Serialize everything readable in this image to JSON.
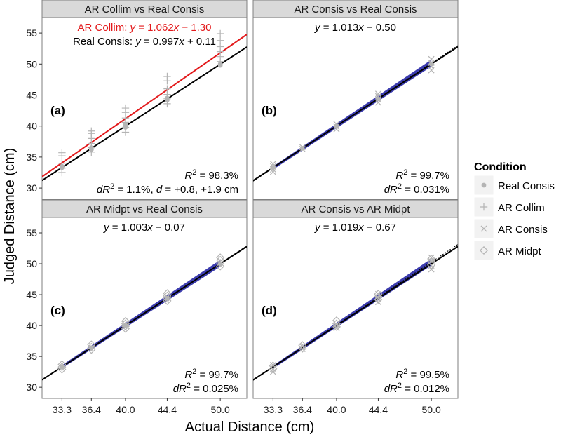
{
  "chart_data": {
    "type": "scatter",
    "xlabel": "Actual Distance (cm)",
    "ylabel": "Judged Distance (cm)",
    "x_ticks": [
      33.3,
      36.4,
      40.0,
      44.4,
      50.0
    ],
    "x_tick_labels": [
      "33.3",
      "36.4",
      "40.0",
      "44.4",
      "50.0"
    ],
    "y_ticks": [
      30,
      35,
      40,
      45,
      50,
      55
    ],
    "y_tick_labels": [
      "30",
      "35",
      "40",
      "45",
      "50",
      "55"
    ],
    "xlim": [
      31.2,
      52.8
    ],
    "ylim": [
      28.2,
      57.5
    ],
    "legend": {
      "title": "Condition",
      "entries": [
        {
          "name": "Real Consis",
          "marker": "dot"
        },
        {
          "name": "AR Collim",
          "marker": "plus"
        },
        {
          "name": "AR Consis",
          "marker": "cross"
        },
        {
          "name": "AR Midpt",
          "marker": "diamond"
        }
      ]
    },
    "colors": {
      "points": "#b4b4b4",
      "red_line": "#e31a1c",
      "blue_band": "#1a1aa0",
      "black_line": "#000000",
      "strip_bg": "#d9d9d9",
      "panel_border": "#7f7f7f"
    },
    "panels": [
      {
        "title": "AR Collim vs Real Consis",
        "letter": "(a)",
        "eq_lines": [
          {
            "prefix": "AR Collim: ",
            "y": "y",
            "mid": " = 1.062",
            "x": "x",
            "suffix": " − 1.30",
            "color": "red"
          },
          {
            "prefix": "Real Consis: ",
            "y": "y",
            "mid": " = 0.997",
            "x": "x",
            "suffix": " + 0.11",
            "color": "black"
          }
        ],
        "r2_label": "R",
        "r2_sup": "2",
        "r2_value": " = 98.3%",
        "dr2_label": "dR",
        "dr2_sup": "2",
        "dr2_value": " = 1.1%, ",
        "d_label": "d",
        "d_value": " = +0.8, +1.9 cm",
        "fit_lines": [
          {
            "slope": 1.062,
            "intercept": -1.3,
            "color": "red"
          },
          {
            "slope": 0.997,
            "intercept": 0.11,
            "color": "black"
          }
        ],
        "series": [
          {
            "name": "Real Consis",
            "marker": "dot",
            "points": [
              [
                33.3,
                33.3
              ],
              [
                33.3,
                33.5
              ],
              [
                36.4,
                36.5
              ],
              [
                36.4,
                36.2
              ],
              [
                40.0,
                39.8
              ],
              [
                40.0,
                40.2
              ],
              [
                44.4,
                44.5
              ],
              [
                44.4,
                44.2
              ],
              [
                50.0,
                50.0
              ],
              [
                50.0,
                49.8
              ]
            ]
          },
          {
            "name": "AR Collim",
            "marker": "plus",
            "points": [
              [
                33.3,
                32.5
              ],
              [
                33.3,
                33.2
              ],
              [
                33.3,
                34.0
              ],
              [
                33.3,
                35.2
              ],
              [
                33.3,
                35.7
              ],
              [
                36.4,
                35.8
              ],
              [
                36.4,
                36.5
              ],
              [
                36.4,
                37.2
              ],
              [
                36.4,
                38.0
              ],
              [
                36.4,
                38.8
              ],
              [
                36.4,
                39.2
              ],
              [
                40.0,
                39.0
              ],
              [
                40.0,
                39.8
              ],
              [
                40.0,
                40.6
              ],
              [
                40.0,
                41.3
              ],
              [
                40.0,
                42.2
              ],
              [
                40.0,
                42.9
              ],
              [
                44.4,
                43.6
              ],
              [
                44.4,
                44.4
              ],
              [
                44.4,
                45.1
              ],
              [
                44.4,
                46.0
              ],
              [
                44.4,
                47.3
              ],
              [
                44.4,
                48.0
              ],
              [
                50.0,
                50.4
              ],
              [
                50.0,
                51.2
              ],
              [
                50.0,
                52.0
              ],
              [
                50.0,
                52.8
              ],
              [
                50.0,
                53.8
              ],
              [
                50.0,
                54.9
              ]
            ]
          }
        ]
      },
      {
        "title": "AR Consis vs Real Consis",
        "letter": "(b)",
        "eq_lines": [
          {
            "prefix": "",
            "y": "y",
            "mid": " = 1.013",
            "x": "x",
            "suffix": " − 0.50",
            "color": "black"
          }
        ],
        "r2_label": "R",
        "r2_sup": "2",
        "r2_value": " = 99.7%",
        "dr2_label": "dR",
        "dr2_sup": "2",
        "dr2_value": " = 0.031%",
        "d_label": "",
        "d_value": "",
        "fit_lines": [
          {
            "slope": 1.013,
            "intercept": -0.5,
            "color": "blue"
          },
          {
            "slope": 1.0,
            "intercept": 0.0,
            "color": "black"
          }
        ],
        "series": [
          {
            "name": "Real Consis",
            "marker": "dot",
            "points": [
              [
                33.3,
                33.3
              ],
              [
                36.4,
                36.4
              ],
              [
                40.0,
                40.0
              ],
              [
                44.4,
                44.4
              ],
              [
                50.0,
                50.0
              ]
            ]
          },
          {
            "name": "AR Consis",
            "marker": "cross",
            "points": [
              [
                33.3,
                32.6
              ],
              [
                33.3,
                33.0
              ],
              [
                33.3,
                33.5
              ],
              [
                33.3,
                33.9
              ],
              [
                36.4,
                36.3
              ],
              [
                36.4,
                36.6
              ],
              [
                40.0,
                39.5
              ],
              [
                40.0,
                39.9
              ],
              [
                40.0,
                40.3
              ],
              [
                44.4,
                43.8
              ],
              [
                44.4,
                44.3
              ],
              [
                44.4,
                44.8
              ],
              [
                44.4,
                45.2
              ],
              [
                50.0,
                49.0
              ],
              [
                50.0,
                49.6
              ],
              [
                50.0,
                50.2
              ],
              [
                50.0,
                50.8
              ]
            ]
          }
        ]
      },
      {
        "title": "AR Midpt vs Real Consis",
        "letter": "(c)",
        "eq_lines": [
          {
            "prefix": "",
            "y": "y",
            "mid": " = 1.003",
            "x": "x",
            "suffix": " − 0.07",
            "color": "black"
          }
        ],
        "r2_label": "R",
        "r2_sup": "2",
        "r2_value": " = 99.7%",
        "dr2_label": "dR",
        "dr2_sup": "2",
        "dr2_value": " = 0.025%",
        "d_label": "",
        "d_value": "",
        "fit_lines": [
          {
            "slope": 1.003,
            "intercept": -0.07,
            "color": "blue"
          },
          {
            "slope": 1.0,
            "intercept": 0.0,
            "color": "black"
          }
        ],
        "series": [
          {
            "name": "Real Consis",
            "marker": "dot",
            "points": [
              [
                33.3,
                33.3
              ],
              [
                36.4,
                36.4
              ],
              [
                40.0,
                40.0
              ],
              [
                44.4,
                44.4
              ],
              [
                50.0,
                50.0
              ]
            ]
          },
          {
            "name": "AR Midpt",
            "marker": "diamond",
            "points": [
              [
                33.3,
                32.9
              ],
              [
                33.3,
                33.3
              ],
              [
                33.3,
                33.7
              ],
              [
                36.4,
                36.1
              ],
              [
                36.4,
                36.5
              ],
              [
                36.4,
                36.9
              ],
              [
                40.0,
                39.5
              ],
              [
                40.0,
                39.9
              ],
              [
                40.0,
                40.3
              ],
              [
                40.0,
                40.7
              ],
              [
                44.4,
                44.0
              ],
              [
                44.4,
                44.4
              ],
              [
                44.4,
                44.8
              ],
              [
                44.4,
                45.2
              ],
              [
                50.0,
                49.6
              ],
              [
                50.0,
                50.1
              ],
              [
                50.0,
                50.6
              ],
              [
                50.0,
                51.0
              ]
            ]
          }
        ]
      },
      {
        "title": "AR Consis vs AR Midpt",
        "letter": "(d)",
        "eq_lines": [
          {
            "prefix": "",
            "y": "y",
            "mid": " = 1.019",
            "x": "x",
            "suffix": " − 0.67",
            "color": "black"
          }
        ],
        "r2_label": "R",
        "r2_sup": "2",
        "r2_value": " = 99.5%",
        "dr2_label": "dR",
        "dr2_sup": "2",
        "dr2_value": " = 0.012%",
        "d_label": "",
        "d_value": "",
        "fit_lines": [
          {
            "slope": 1.019,
            "intercept": -0.67,
            "color": "blue"
          },
          {
            "slope": 1.0,
            "intercept": 0.0,
            "color": "black"
          }
        ],
        "series": [
          {
            "name": "AR Consis",
            "marker": "cross",
            "points": [
              [
                33.3,
                32.5
              ],
              [
                33.3,
                33.0
              ],
              [
                33.3,
                33.6
              ],
              [
                36.4,
                36.2
              ],
              [
                36.4,
                36.6
              ],
              [
                40.0,
                39.6
              ],
              [
                40.0,
                40.1
              ],
              [
                44.4,
                43.8
              ],
              [
                44.4,
                44.4
              ],
              [
                44.4,
                45.1
              ],
              [
                50.0,
                49.1
              ],
              [
                50.0,
                49.7
              ],
              [
                50.0,
                50.4
              ],
              [
                50.0,
                51.0
              ]
            ]
          },
          {
            "name": "AR Midpt",
            "marker": "diamond",
            "points": [
              [
                33.3,
                33.0
              ],
              [
                33.3,
                33.5
              ],
              [
                36.4,
                36.3
              ],
              [
                36.4,
                36.8
              ],
              [
                40.0,
                39.8
              ],
              [
                40.0,
                40.3
              ],
              [
                40.0,
                40.8
              ],
              [
                44.4,
                44.2
              ],
              [
                44.4,
                44.7
              ],
              [
                44.4,
                45.1
              ],
              [
                50.0,
                49.8
              ],
              [
                50.0,
                50.3
              ],
              [
                50.0,
                50.8
              ]
            ]
          }
        ]
      }
    ]
  }
}
